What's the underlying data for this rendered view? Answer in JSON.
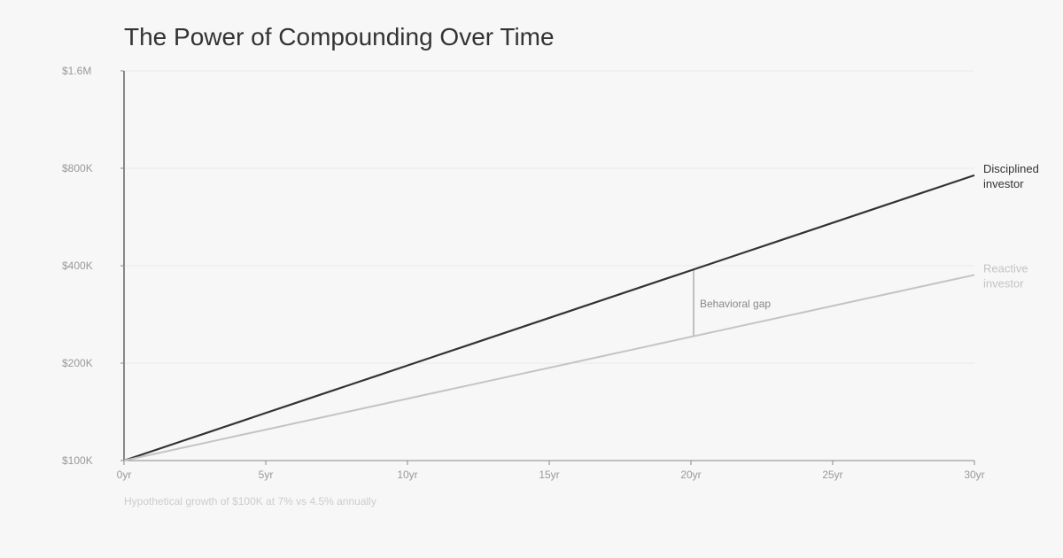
{
  "chart_data": {
    "type": "line",
    "title": "The Power of Compounding Over Time",
    "caption": "Hypothetical growth of $100K at 7% vs 4.5% annually",
    "xlabel": "",
    "ylabel": "",
    "y_scale": "log",
    "ylim": [
      100000,
      1600000
    ],
    "xlim": [
      0,
      30
    ],
    "grid": true,
    "x_ticks": [
      0,
      5,
      10,
      15,
      20,
      25,
      30
    ],
    "x_tick_labels": [
      "0yr",
      "5yr",
      "10yr",
      "15yr",
      "20yr",
      "25yr",
      "30yr"
    ],
    "y_ticks": [
      100000,
      200000,
      400000,
      800000,
      1600000
    ],
    "y_tick_labels": [
      "$100K",
      "$200K",
      "$400K",
      "$800K",
      "$1.6M"
    ],
    "x": [
      0,
      1,
      2,
      3,
      4,
      5,
      6,
      7,
      8,
      9,
      10,
      11,
      12,
      13,
      14,
      15,
      16,
      17,
      18,
      19,
      20,
      21,
      22,
      23,
      24,
      25,
      26,
      27,
      28,
      29,
      30
    ],
    "series": [
      {
        "name": "Disciplined investor",
        "label_lines": [
          "Disciplined",
          "investor"
        ],
        "color": "#333333",
        "label_color": "#333333",
        "rate": 0.07,
        "values_k": [
          100,
          107,
          114.5,
          122.5,
          131.1,
          140.3,
          150.1,
          160.6,
          171.8,
          183.8,
          196.7,
          210.5,
          225.2,
          241.0,
          257.9,
          275.9,
          295.2,
          315.9,
          338.0,
          361.7,
          387.0,
          414.1,
          443.1,
          474.1,
          507.2,
          542.7,
          580.7,
          621.4,
          664.9,
          711.4,
          761.2
        ]
      },
      {
        "name": "Reactive investor",
        "label_lines": [
          "Reactive",
          "investor"
        ],
        "color": "#c4c4c4",
        "label_color": "#c4c4c4",
        "rate": 0.045,
        "values_k": [
          100,
          104.5,
          109.2,
          114.1,
          119.3,
          124.6,
          130.2,
          136.1,
          142.2,
          148.6,
          155.3,
          162.3,
          169.6,
          177.2,
          185.2,
          193.5,
          202.2,
          211.3,
          220.8,
          230.8,
          241.2,
          252.0,
          263.4,
          275.2,
          287.6,
          300.6,
          314.1,
          328.2,
          343.0,
          358.5,
          374.5
        ]
      }
    ],
    "annotations": [
      {
        "text": "Behavioral gap",
        "x": 20
      }
    ]
  }
}
